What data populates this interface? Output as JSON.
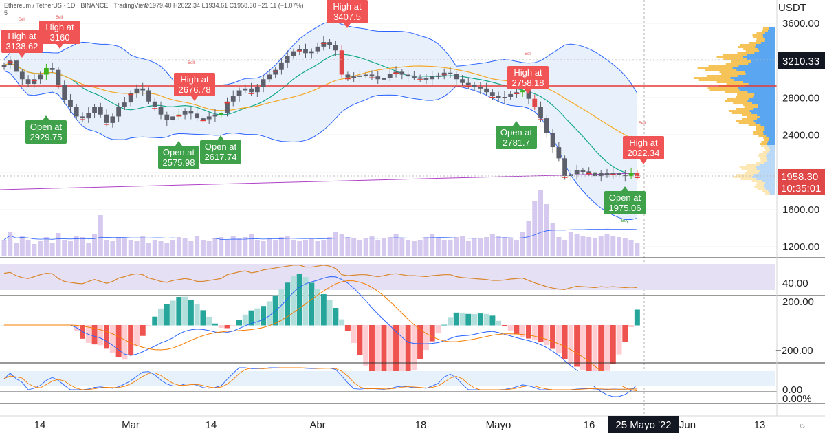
{
  "header": {
    "title": "Ethereum / TetherUS · 1D · BINANCE · TradingView",
    "ohlc": "O1979.40 H2022.34 L1934.61 C1958.30 −21.11 (−1.07%)",
    "sub": "5"
  },
  "price_axis": {
    "unit": "USDT",
    "ticks": [
      "3600.00",
      "3200.00",
      "2800.00",
      "2400.00",
      "2000.00",
      "1600.00",
      "1200.00"
    ],
    "hline_price": "3210.33",
    "last_price": "1958.30",
    "countdown": "10:35:01"
  },
  "rsi_axis": {
    "ticks": [
      "40.00"
    ]
  },
  "macd_axis": {
    "ticks": [
      "200.00",
      "−200.00"
    ]
  },
  "stoch_axis": {
    "ticks": [
      "0.00",
      "0.00%"
    ]
  },
  "time_axis": {
    "labels": [
      "14",
      "Mar",
      "14",
      "Abr",
      "18",
      "Mayo",
      "16",
      "Jun",
      "13"
    ],
    "current": "25 Mayo '22"
  },
  "annotations": [
    {
      "text": "High at\n3138.62",
      "type": "high"
    },
    {
      "text": "High at\n3160",
      "type": "high"
    },
    {
      "text": "High at\n3407.5",
      "type": "high"
    },
    {
      "text": "High at\n2676.78",
      "type": "high"
    },
    {
      "text": "High at\n2758.18",
      "type": "high"
    },
    {
      "text": "High at\n2022.34",
      "type": "high"
    },
    {
      "text": "Open at\n2929.75",
      "type": "open"
    },
    {
      "text": "Open at\n2575.98",
      "type": "open"
    },
    {
      "text": "Open at\n2617.74",
      "type": "open"
    },
    {
      "text": "Open at\n2781.7",
      "type": "open"
    },
    {
      "text": "Open at\n1975.06",
      "type": "open"
    }
  ],
  "signals": {
    "sell": "Sell",
    "buy": "Buy"
  },
  "colors": {
    "up": "#26a69a",
    "down": "#ef5350",
    "candle": "#5d606b",
    "high_box": "#f05454",
    "open_box": "#3fa24a",
    "axis_dark": "#131722",
    "hline": "#e53935"
  },
  "chart_data": [
    {
      "type": "candlestick",
      "title": "Ethereum / TetherUS",
      "interval": "1D",
      "ylim": [
        1100,
        3800
      ],
      "annotated_highs": [
        3138.62,
        3160,
        3407.5,
        2676.78,
        2758.18,
        2022.34
      ],
      "annotated_opens": [
        2929.75,
        2575.98,
        2617.74,
        2781.7,
        1975.06
      ],
      "close_series": [
        3150,
        3200,
        3080,
        3000,
        2950,
        3000,
        3050,
        3120,
        3100,
        2940,
        2780,
        2700,
        2600,
        2580,
        2640,
        2700,
        2620,
        2530,
        2600,
        2700,
        2750,
        2850,
        2900,
        2880,
        2760,
        2700,
        2620,
        2560,
        2600,
        2620,
        2660,
        2630,
        2580,
        2570,
        2600,
        2620,
        2640,
        2760,
        2820,
        2880,
        2900,
        2860,
        2920,
        3000,
        3050,
        3100,
        3180,
        3250,
        3300,
        3320,
        3280,
        3300,
        3350,
        3400,
        3370,
        3310,
        3050,
        3020,
        3030,
        3040,
        3050,
        3030,
        3000,
        3010,
        3060,
        3080,
        3050,
        3030,
        3020,
        3010,
        3000,
        3030,
        3040,
        3070,
        3060,
        3000,
        2960,
        2940,
        2920,
        2900,
        2860,
        2820,
        2800,
        2810,
        2840,
        2860,
        2880,
        2790,
        2700,
        2580,
        2420,
        2270,
        2150,
        1960,
        1980,
        2020,
        2010,
        2000,
        1960,
        1990,
        1970,
        1990,
        1975,
        1960,
        1990,
        1958.3
      ],
      "last": 1958.3,
      "reference_line": 2930
    },
    {
      "type": "bar",
      "name": "Volume",
      "values": [
        12,
        18,
        10,
        15,
        12,
        9,
        11,
        14,
        10,
        17,
        12,
        11,
        15,
        14,
        10,
        16,
        30,
        12,
        11,
        14,
        13,
        12,
        11,
        15,
        10,
        12,
        11,
        10,
        12,
        14,
        13,
        11,
        15,
        12,
        11,
        13,
        14,
        12,
        15,
        13,
        14,
        16,
        12,
        11,
        13,
        12,
        14,
        15,
        12,
        11,
        12,
        13,
        11,
        12,
        14,
        18,
        16,
        14,
        13,
        12,
        13,
        15,
        12,
        13,
        14,
        16,
        13,
        12,
        11,
        12,
        14,
        16,
        13,
        12,
        12,
        14,
        15,
        11,
        13,
        13,
        14,
        16,
        15,
        14,
        13,
        12,
        18,
        26,
        40,
        48,
        38,
        24,
        14,
        12,
        18,
        16,
        15,
        14,
        13,
        15,
        16,
        15,
        14,
        13,
        12,
        10
      ]
    },
    {
      "type": "line",
      "name": "RSI",
      "ylim": [
        20,
        80
      ],
      "values": [
        55,
        57,
        50,
        46,
        44,
        48,
        52,
        55,
        54,
        44,
        38,
        36,
        34,
        33,
        38,
        42,
        38,
        34,
        38,
        45,
        48,
        52,
        54,
        52,
        45,
        42,
        38,
        36,
        40,
        42,
        44,
        42,
        38,
        38,
        40,
        42,
        44,
        52,
        55,
        58,
        60,
        56,
        58,
        62,
        64,
        66,
        68,
        70,
        72,
        72,
        68,
        68,
        70,
        72,
        70,
        65,
        52,
        50,
        51,
        52,
        52,
        50,
        48,
        50,
        53,
        54,
        52,
        50,
        50,
        49,
        48,
        50,
        51,
        52,
        52,
        48,
        46,
        45,
        44,
        43,
        42,
        40,
        40,
        41,
        43,
        44,
        45,
        40,
        35,
        31,
        27,
        24,
        22,
        21,
        25,
        28,
        27,
        26,
        25,
        27,
        26,
        27,
        26,
        25,
        26,
        25
      ]
    },
    {
      "type": "bar",
      "name": "MACD",
      "ylim": [
        -250,
        250
      ]
    },
    {
      "type": "line",
      "name": "Stochastic",
      "ylim": [
        0,
        100
      ]
    }
  ]
}
